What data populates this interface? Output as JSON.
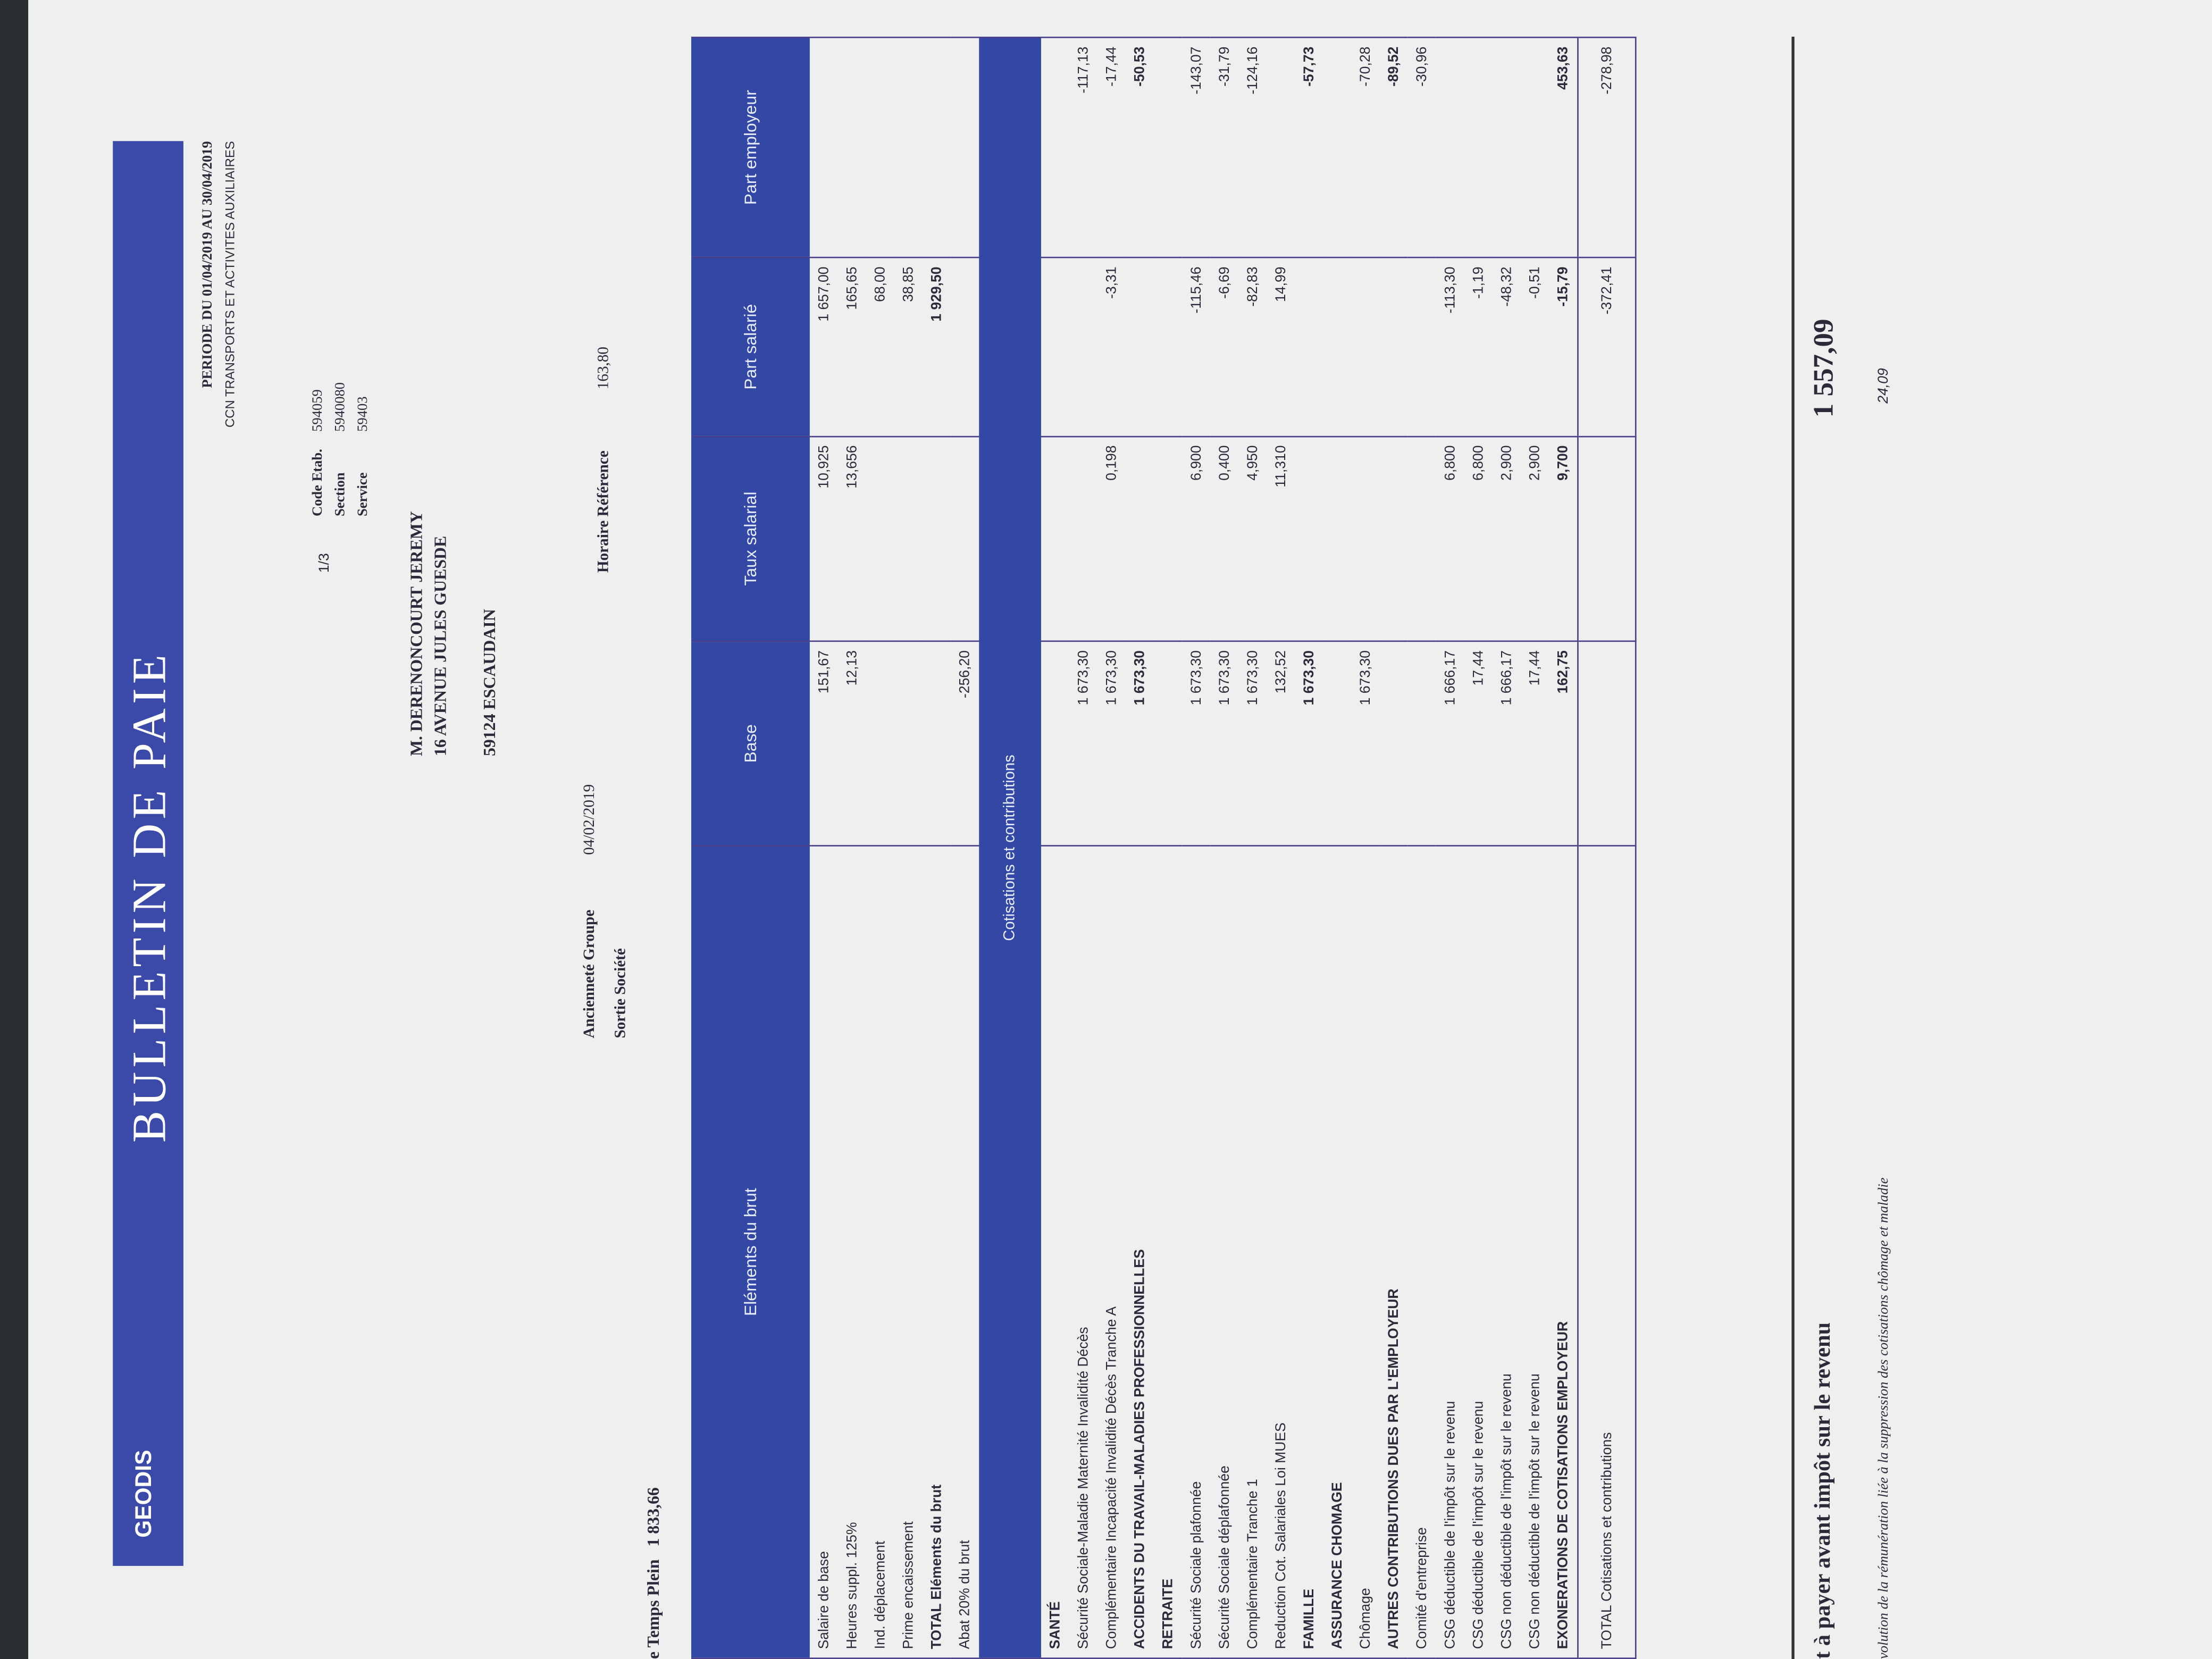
{
  "header": {
    "logo": "GEODIS",
    "title": "BULLETIN DE PAIE",
    "period": "PERIODE DU 01/04/2019 AU 30/04/2019",
    "convention": "CCN TRANSPORTS ET ACTIVITES AUXILIAIRES",
    "page": "1/3",
    "fields": [
      {
        "label": "Code Etab.",
        "value": "594059"
      },
      {
        "label": "Section",
        "value": "5940080"
      },
      {
        "label": "Service",
        "value": "59403"
      }
    ]
  },
  "employee": {
    "name": "M. DERENONCOURT JEREMY",
    "address": "16 AVENUE JULES GUESDE",
    "city": "59124 ESCAUDAIN"
  },
  "info": [
    {
      "label": "Ancienneté Groupe",
      "value": "04/02/2019"
    },
    {
      "label": "Sortie Société"
    },
    {
      "label": "Horaire Référence",
      "value": "163,80"
    }
  ],
  "temps_plein": {
    "label": "e Temps Plein",
    "value": "1 833,66"
  },
  "table": {
    "columns": [
      "Eléments du brut",
      "Base",
      "Taux salarial",
      "Part salarié",
      "Part employeur"
    ],
    "brut_rows": [
      [
        "Salaire de base",
        "151,67",
        "10,925",
        "1 657,00",
        null
      ],
      [
        "Heures suppl. 125%",
        "12,13",
        "13,656",
        "165,65",
        null
      ],
      [
        "Ind. déplacement",
        null,
        null,
        "68,00",
        null
      ],
      [
        "Prime encaissement",
        null,
        null,
        "38,85",
        null
      ],
      [
        "TOTAL Eléments du brut",
        null,
        null,
        "1 929,50",
        null
      ],
      [
        "Abat 20% du brut",
        "-256,20",
        null,
        null,
        null
      ]
    ],
    "section": "Cotisations et contributions",
    "cotisation_rows": [
      [
        "SANTÉ",
        null,
        null,
        null,
        null
      ],
      [
        "Sécurité Sociale-Maladie Maternité Invalidité Décès",
        "1 673,30",
        null,
        null,
        "-117,13"
      ],
      [
        "Complémentaire Incapacité Invalidité Décès Tranche A",
        "1 673,30",
        "0,198",
        "-3,31",
        "-17,44"
      ],
      [
        "ACCIDENTS DU TRAVAIL-MALADIES PROFESSIONNELLES",
        "1 673,30",
        null,
        null,
        "-50,53"
      ],
      [
        "RETRAITE",
        null,
        null,
        null,
        null
      ],
      [
        "Sécurité Sociale plafonnée",
        "1 673,30",
        "6,900",
        "-115,46",
        "-143,07"
      ],
      [
        "Sécurité Sociale déplafonnée",
        "1 673,30",
        "0,400",
        "-6,69",
        "-31,79"
      ],
      [
        "Complémentaire Tranche 1",
        "1 673,30",
        "4,950",
        "-82,83",
        "-124,16"
      ],
      [
        "Reduction Cot. Salariales Loi MUES",
        "132,52",
        "11,310",
        "14,99",
        null
      ],
      [
        "FAMILLE",
        "1 673,30",
        null,
        null,
        "-57,73"
      ],
      [
        "ASSURANCE CHOMAGE",
        null,
        null,
        null,
        null
      ],
      [
        "Chômage",
        "1 673,30",
        null,
        null,
        "-70,28"
      ],
      [
        "AUTRES CONTRIBUTIONS DUES PAR L'EMPLOYEUR",
        null,
        null,
        null,
        "-89,52"
      ],
      [
        "Comité d'entreprise",
        null,
        null,
        null,
        "-30,96"
      ],
      [
        "CSG déductible de l'impôt sur le revenu",
        "1 666,17",
        "6,800",
        "-113,30",
        null
      ],
      [
        "CSG déductible de l'impôt sur le revenu",
        "17,44",
        "6,800",
        "-1,19",
        null
      ],
      [
        "CSG non déductible de l'impôt sur le revenu",
        "1 666,17",
        "2,900",
        "-48,32",
        null
      ],
      [
        "CSG non déductible de l'impôt sur le revenu",
        "17,44",
        "2,900",
        "-0,51",
        null
      ],
      [
        "EXONERATIONS DE COTISATIONS EMPLOYEUR",
        "162,75",
        "9,700",
        "-15,79",
        "453,63"
      ]
    ],
    "total": [
      "TOTAL Cotisations et contributions",
      null,
      null,
      "-372,41",
      "-278,98"
    ]
  },
  "footer": {
    "net_label": "t à payer avant impôt sur le revenu",
    "net_value": "1 557,09",
    "note": "volution de la rémunération liée à la suppression des cotisations chômage et maladie",
    "note_value": "24,09"
  }
}
